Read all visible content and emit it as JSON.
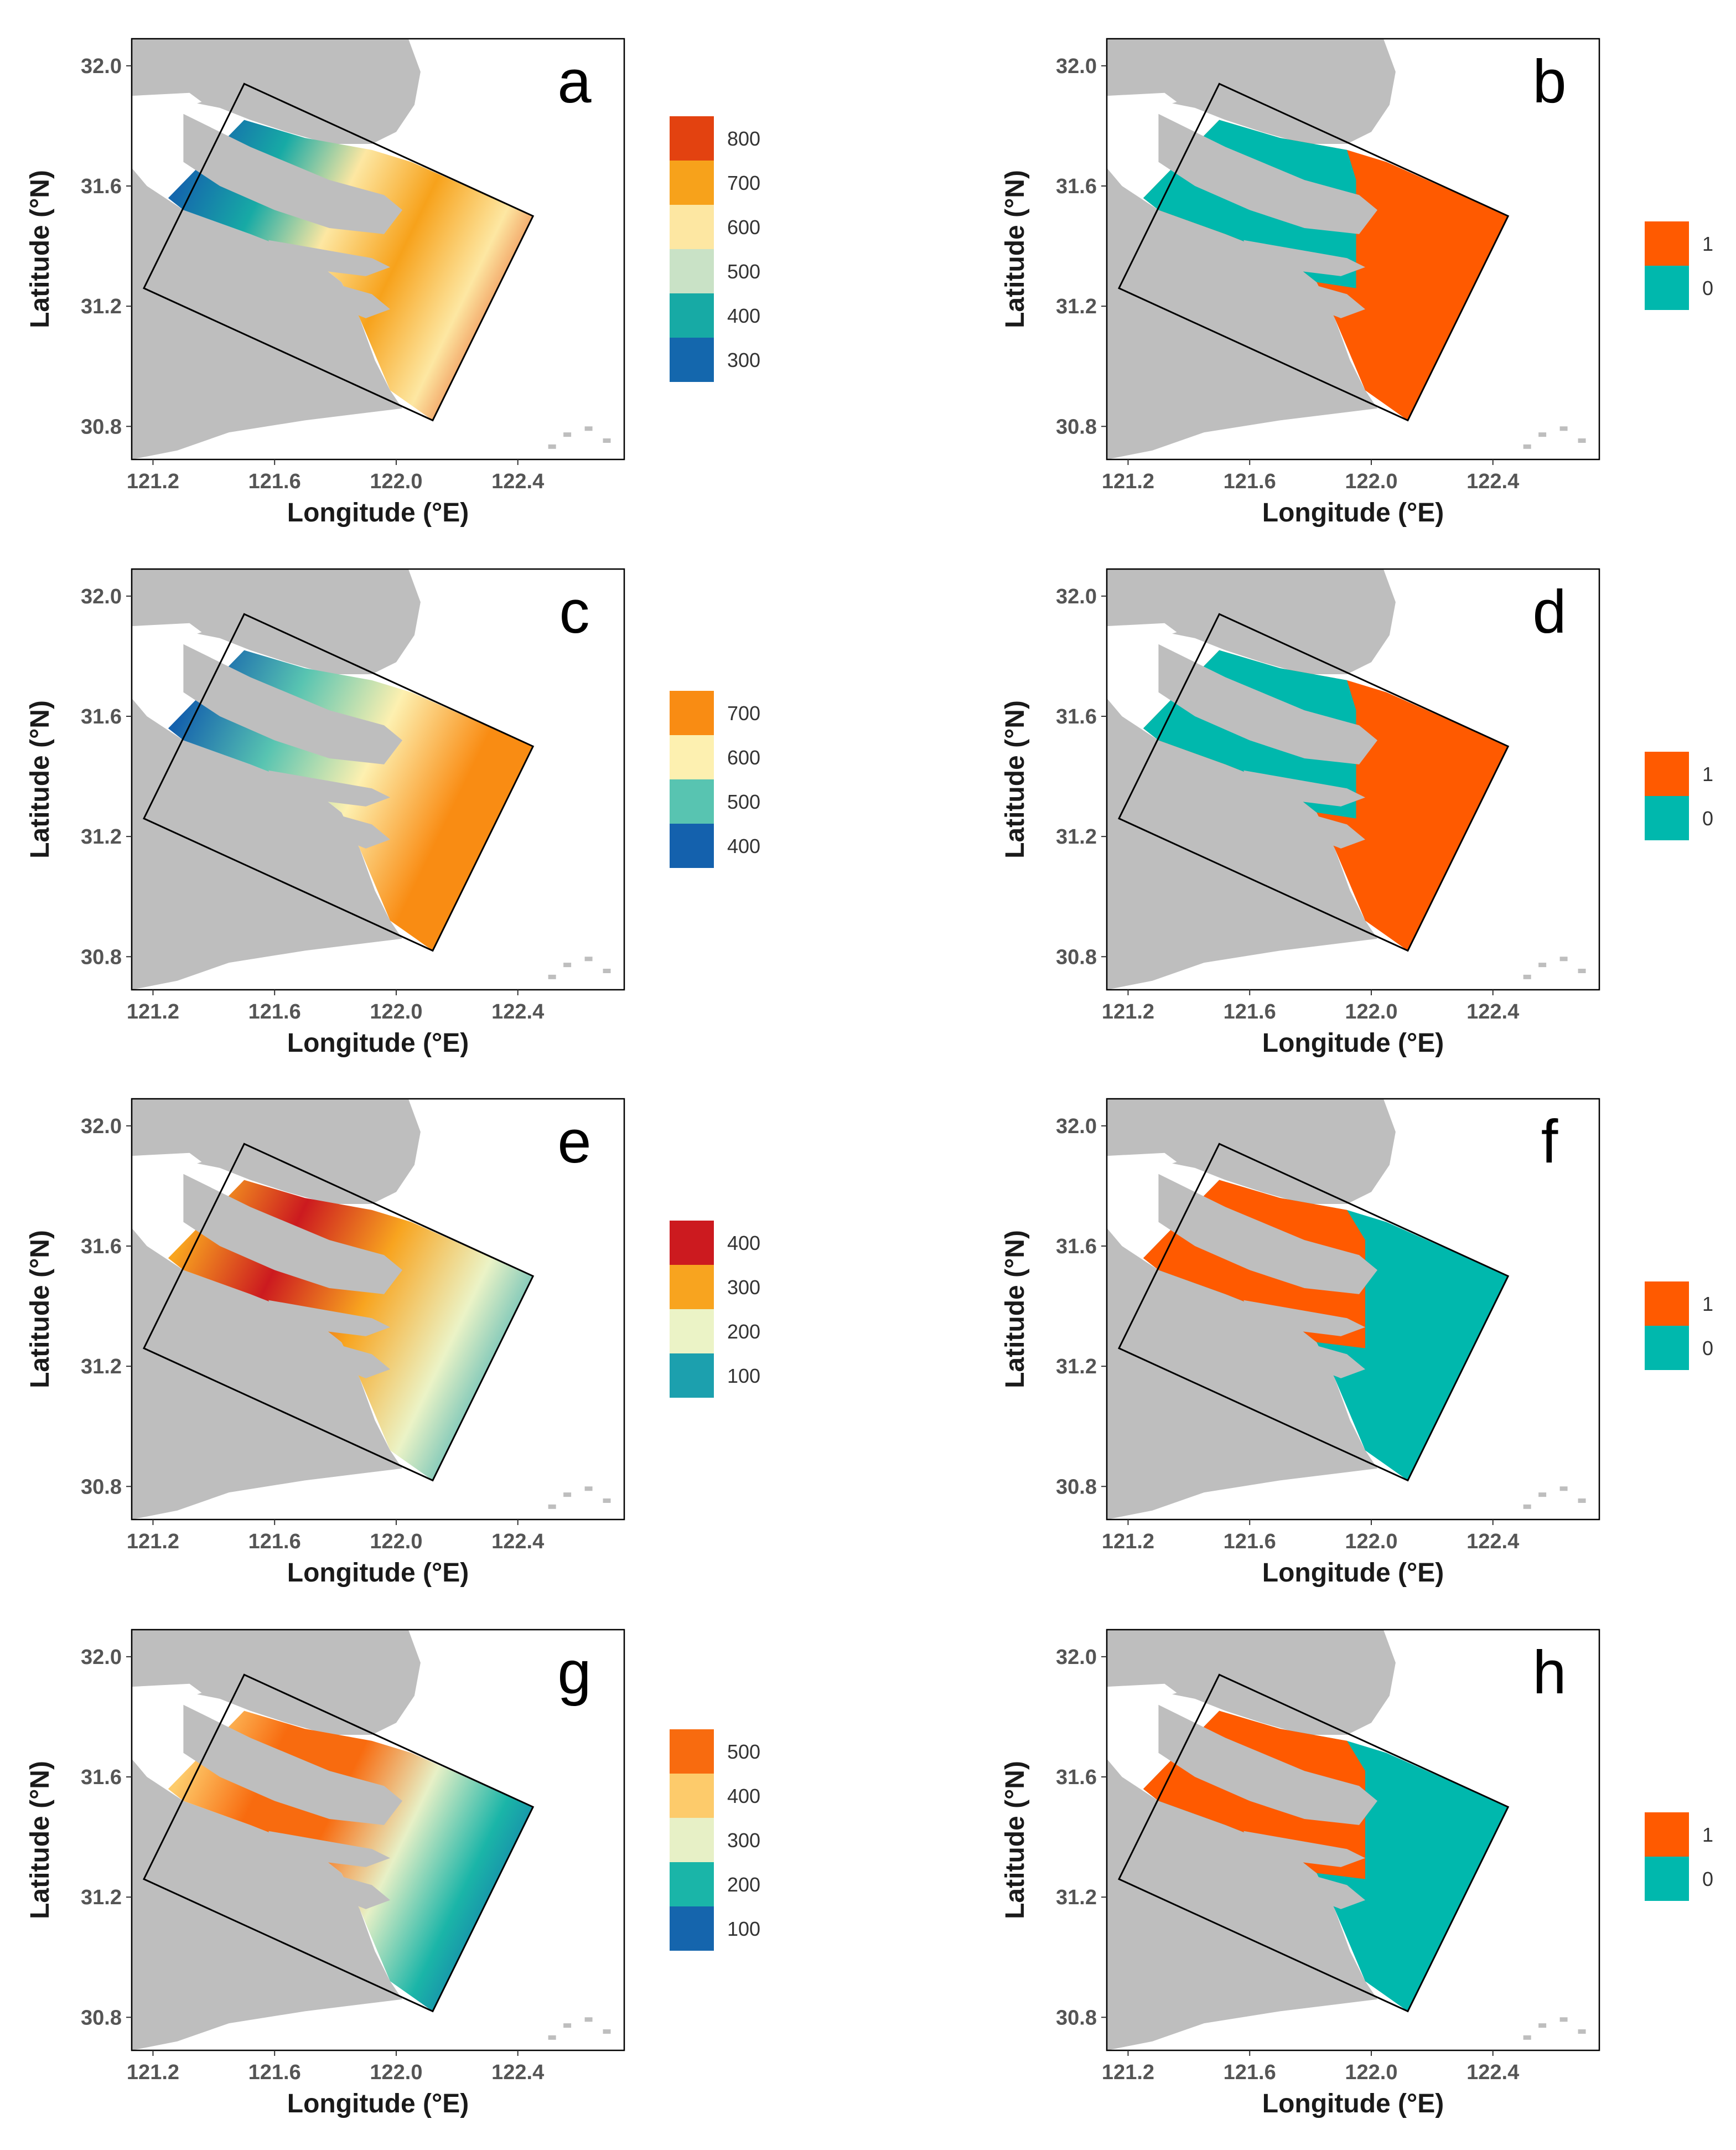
{
  "figure": {
    "xlabel": "Longitude (°E)",
    "ylabel": "Latitude (°N)",
    "xticks": [
      "121.2",
      "121.6",
      "122.0",
      "122.4"
    ],
    "yticks": [
      "32.0",
      "31.6",
      "31.2",
      "30.8"
    ],
    "xlim": [
      121.13,
      122.75
    ],
    "ylim": [
      30.69,
      32.09
    ],
    "colors": {
      "land": "#bebebe",
      "frame": "#000000",
      "binary_1": "#ff5a00",
      "binary_0": "#00b8ad"
    },
    "panels": [
      {
        "letter": "a",
        "type": "continuous",
        "legend": [
          {
            "label": "800",
            "color": "#e34210"
          },
          {
            "label": "700",
            "color": "#f7a21b"
          },
          {
            "label": "600",
            "color": "#fde7a2"
          },
          {
            "label": "500",
            "color": "#c9e2c6"
          },
          {
            "label": "400",
            "color": "#17aaa5"
          },
          {
            "label": "300",
            "color": "#1467ad"
          }
        ]
      },
      {
        "letter": "b",
        "type": "binary",
        "legend": [
          {
            "label": "1",
            "color": "#ff5a00"
          },
          {
            "label": "0",
            "color": "#00b8ad"
          }
        ]
      },
      {
        "letter": "c",
        "type": "continuous",
        "legend": [
          {
            "label": "700",
            "color": "#f98c13"
          },
          {
            "label": "600",
            "color": "#fdf0b0"
          },
          {
            "label": "500",
            "color": "#58c4b1"
          },
          {
            "label": "400",
            "color": "#1461ad"
          }
        ]
      },
      {
        "letter": "d",
        "type": "binary",
        "legend": [
          {
            "label": "1",
            "color": "#ff5a00"
          },
          {
            "label": "0",
            "color": "#00b8ad"
          }
        ]
      },
      {
        "letter": "e",
        "type": "continuous",
        "legend": [
          {
            "label": "400",
            "color": "#cc1a1f"
          },
          {
            "label": "300",
            "color": "#f8a41f"
          },
          {
            "label": "200",
            "color": "#ebf3c6"
          },
          {
            "label": "100",
            "color": "#1ca0ae"
          }
        ]
      },
      {
        "letter": "f",
        "type": "binary",
        "legend": [
          {
            "label": "1",
            "color": "#ff5a00"
          },
          {
            "label": "0",
            "color": "#00b8ad"
          }
        ]
      },
      {
        "letter": "g",
        "type": "continuous",
        "legend": [
          {
            "label": "500",
            "color": "#f86b0f"
          },
          {
            "label": "400",
            "color": "#fdcb6b"
          },
          {
            "label": "300",
            "color": "#e7f0c6"
          },
          {
            "label": "200",
            "color": "#1ab5a8"
          },
          {
            "label": "100",
            "color": "#1565ad"
          }
        ]
      },
      {
        "letter": "h",
        "type": "binary",
        "legend": [
          {
            "label": "1",
            "color": "#ff5a00"
          },
          {
            "label": "0",
            "color": "#00b8ad"
          }
        ]
      }
    ]
  }
}
